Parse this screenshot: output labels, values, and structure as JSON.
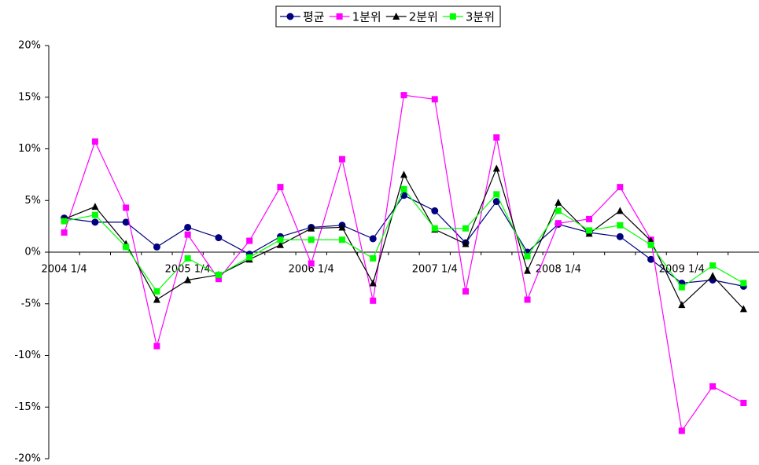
{
  "chart_data": {
    "type": "line",
    "categories": [
      "2004 1/4",
      null,
      null,
      null,
      "2005 1/4",
      null,
      null,
      null,
      "2006 1/4",
      null,
      null,
      null,
      "2007 1/4",
      null,
      null,
      null,
      "2008 1/4",
      null,
      null,
      null,
      "2009 1/4",
      null,
      null
    ],
    "series": [
      {
        "name": "평균",
        "color": "#000080",
        "marker": "circle",
        "values": [
          3.3,
          2.9,
          2.9,
          0.5,
          2.4,
          1.4,
          -0.2,
          1.5,
          2.4,
          2.6,
          1.3,
          5.5,
          4.0,
          0.9,
          4.9,
          0.0,
          2.7,
          1.9,
          1.5,
          -0.7,
          -3.0,
          -2.7,
          -3.3
        ]
      },
      {
        "name": "1분위",
        "color": "#ff00ff",
        "marker": "square",
        "values": [
          1.9,
          10.7,
          4.3,
          -9.1,
          1.7,
          -2.6,
          1.1,
          6.3,
          -1.1,
          9.0,
          -4.7,
          15.2,
          14.8,
          -3.8,
          11.1,
          -4.6,
          2.8,
          3.2,
          6.3,
          1.2,
          -17.3,
          -13.0,
          -14.6
        ]
      },
      {
        "name": "2분위",
        "color": "#000000",
        "marker": "triangle",
        "values": [
          3.2,
          4.4,
          0.8,
          -4.6,
          -2.7,
          -2.2,
          -0.7,
          0.7,
          2.3,
          2.4,
          -3.0,
          7.5,
          2.2,
          0.8,
          8.1,
          -1.8,
          4.8,
          1.8,
          4.0,
          1.1,
          -5.1,
          -2.3,
          -5.5
        ]
      },
      {
        "name": "3분위",
        "color": "#00ff00",
        "marker": "square",
        "values": [
          3.0,
          3.6,
          0.5,
          -3.8,
          -0.6,
          -2.2,
          -0.5,
          1.2,
          1.2,
          1.2,
          -0.6,
          6.1,
          2.3,
          2.3,
          5.6,
          -0.4,
          4.0,
          2.1,
          2.6,
          0.7,
          -3.4,
          -1.3,
          -3.0
        ]
      }
    ],
    "ylim": [
      -20,
      20
    ],
    "yticks": [
      {
        "value": -20,
        "label": "-20%"
      },
      {
        "value": -15,
        "label": "-15%"
      },
      {
        "value": -10,
        "label": "-10%"
      },
      {
        "value": -5,
        "label": "-5%"
      },
      {
        "value": 0,
        "label": "0%"
      },
      {
        "value": 5,
        "label": "5%"
      },
      {
        "value": 10,
        "label": "10%"
      },
      {
        "value": 15,
        "label": "15%"
      },
      {
        "value": 20,
        "label": "20%"
      }
    ],
    "legend": "top"
  }
}
